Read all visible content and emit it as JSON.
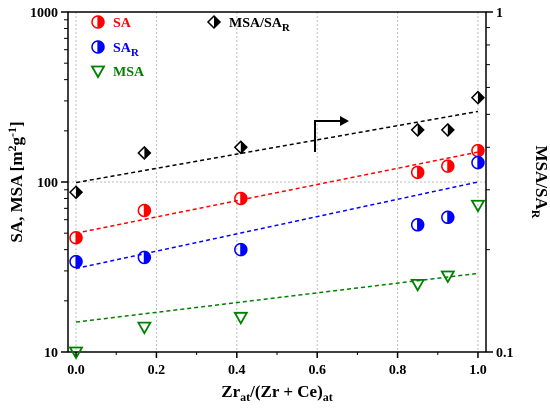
{
  "chart_data": {
    "type": "scatter",
    "xlabel_main": "Zr",
    "xlabel_sub1": "at",
    "xlabel_mid": "/(Zr + Ce)",
    "xlabel_sub2": "at",
    "ylabel_left_main": "SA, MSA [m",
    "ylabel_left_sup1": "2",
    "ylabel_left_mid": "g",
    "ylabel_left_sup2": "-1",
    "ylabel_left_end": "]",
    "ylabel_right_main": "MSA/SA",
    "ylabel_right_sub": "R",
    "xlim": [
      -0.02,
      1.02
    ],
    "ylim_left": [
      10,
      1000
    ],
    "ylim_right": [
      0.1,
      1
    ],
    "yscale": "log",
    "grid": true,
    "x_ticks": [
      "0.0",
      "0.2",
      "0.4",
      "0.6",
      "0.8",
      "1.0"
    ],
    "y_left_ticks": [
      "10",
      "100",
      "1000"
    ],
    "y_right_ticks": [
      "0.1",
      "1"
    ],
    "series": [
      {
        "name": "SA",
        "name_sub": "",
        "axis": "left",
        "marker": "half-circle",
        "color": "#ff0000",
        "x": [
          0.0,
          0.17,
          0.41,
          0.85,
          0.925,
          1.0
        ],
        "values": [
          47,
          68,
          80,
          114,
          124,
          153
        ],
        "trend": [
          [
            0.0,
            50
          ],
          [
            1.0,
            150
          ]
        ]
      },
      {
        "name": "SA",
        "name_sub": "R",
        "axis": "left",
        "marker": "half-circle",
        "color": "#0000ff",
        "x": [
          0.0,
          0.17,
          0.41,
          0.85,
          0.925,
          1.0
        ],
        "values": [
          34,
          36,
          40,
          56,
          62,
          130
        ],
        "trend": [
          [
            0.0,
            31
          ],
          [
            1.0,
            100
          ]
        ]
      },
      {
        "name": "MSA",
        "name_sub": "",
        "axis": "left",
        "marker": "triangle-down",
        "color": "#008000",
        "x": [
          0.0,
          0.17,
          0.41,
          0.85,
          0.925,
          1.0
        ],
        "values": [
          10,
          14,
          16,
          25,
          28,
          73
        ],
        "trend": [
          [
            0.0,
            15
          ],
          [
            1.0,
            29
          ]
        ]
      },
      {
        "name": "MSA/SA",
        "name_sub": "R",
        "axis": "right",
        "marker": "half-diamond",
        "color": "#000000",
        "x": [
          0.0,
          0.17,
          0.41,
          0.85,
          0.925,
          1.0
        ],
        "values": [
          0.295,
          0.385,
          0.4,
          0.45,
          0.45,
          0.56
        ],
        "trend": [
          [
            0.0,
            0.315
          ],
          [
            1.0,
            0.51
          ]
        ]
      }
    ]
  }
}
